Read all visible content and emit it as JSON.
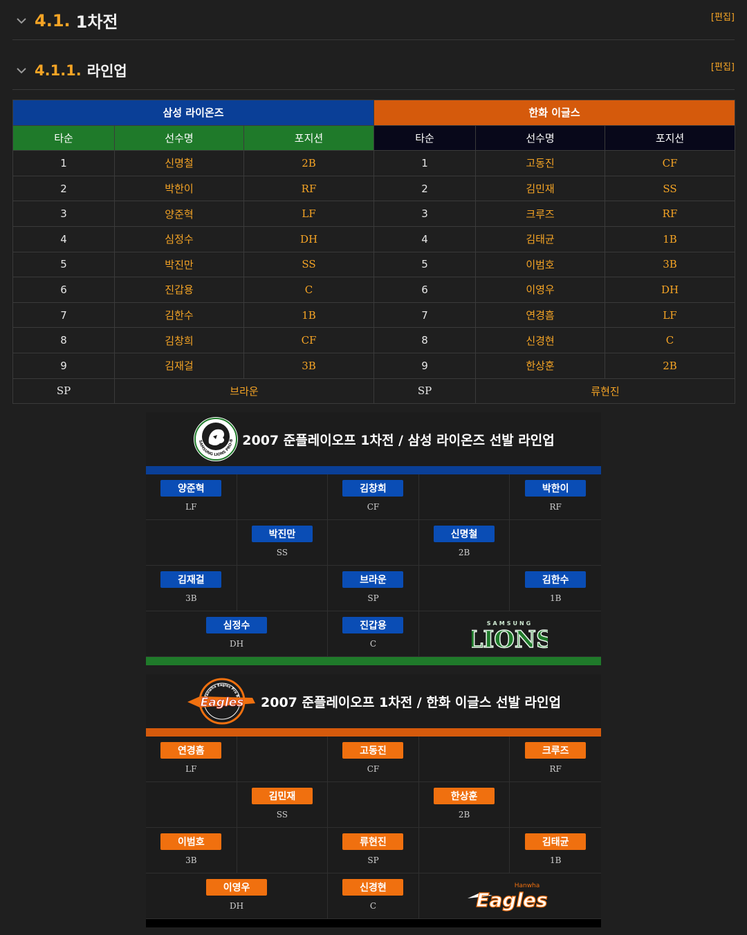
{
  "headings": [
    {
      "num": "4.1.",
      "title": "1차전",
      "edit": "[편집]"
    },
    {
      "num": "4.1.1.",
      "title": "라인업",
      "edit": "[편집]"
    }
  ],
  "table": {
    "team_left": "삼성 라이온즈",
    "team_right": "한화 이글스",
    "cols": [
      "타순",
      "선수명",
      "포지션"
    ],
    "left_rows": [
      [
        "1",
        "신명철",
        "2B"
      ],
      [
        "2",
        "박한이",
        "RF"
      ],
      [
        "3",
        "양준혁",
        "LF"
      ],
      [
        "4",
        "심정수",
        "DH"
      ],
      [
        "5",
        "박진만",
        "SS"
      ],
      [
        "6",
        "진갑용",
        "C"
      ],
      [
        "7",
        "김한수",
        "1B"
      ],
      [
        "8",
        "김창희",
        "CF"
      ],
      [
        "9",
        "김재걸",
        "3B"
      ]
    ],
    "right_rows": [
      [
        "1",
        "고동진",
        "CF"
      ],
      [
        "2",
        "김민재",
        "SS"
      ],
      [
        "3",
        "크루즈",
        "RF"
      ],
      [
        "4",
        "김태균",
        "1B"
      ],
      [
        "5",
        "이범호",
        "3B"
      ],
      [
        "6",
        "이영우",
        "DH"
      ],
      [
        "7",
        "연경흠",
        "LF"
      ],
      [
        "8",
        "신경현",
        "C"
      ],
      [
        "9",
        "한상훈",
        "2B"
      ]
    ],
    "sp_label": "SP",
    "left_sp": "브라운",
    "right_sp": "류현진"
  },
  "samsung_card": {
    "title": "2007 준플레이오프 1차전 / 삼성 라이온즈 선발 라인업",
    "logo_ring_text": "SAMSUNG LIONS PRO-BASEBALL TEAM",
    "wordmark_top": "SAMSUNG",
    "wordmark": "LIONS",
    "colors": {
      "top_bar": "#0a3f97",
      "bottom_bar": "#1f7a2a",
      "pill": "#0a4db5"
    },
    "lf": {
      "name": "양준혁",
      "pos": "LF"
    },
    "cf": {
      "name": "김창희",
      "pos": "CF"
    },
    "rf": {
      "name": "박한이",
      "pos": "RF"
    },
    "ss": {
      "name": "박진만",
      "pos": "SS"
    },
    "b2": {
      "name": "신명철",
      "pos": "2B"
    },
    "b3": {
      "name": "김재걸",
      "pos": "3B"
    },
    "sp": {
      "name": "브라운",
      "pos": "SP"
    },
    "b1": {
      "name": "김한수",
      "pos": "1B"
    },
    "dh": {
      "name": "심정수",
      "pos": "DH"
    },
    "c": {
      "name": "진갑용",
      "pos": "C"
    }
  },
  "hanwha_card": {
    "title": "2007 준플레이오프 1차전 / 한화 이글스 선발 라인업",
    "logo_text": "Eagles",
    "logo_ring_text": "Hanwha Eagles Pro Baseball Club",
    "wordmark_top": "Hanwha",
    "wordmark": "Eagles",
    "colors": {
      "top_bar": "#d55a0c",
      "bottom_bar": "#000000",
      "pill": "#f0700f"
    },
    "lf": {
      "name": "연경흠",
      "pos": "LF"
    },
    "cf": {
      "name": "고동진",
      "pos": "CF"
    },
    "rf": {
      "name": "크루즈",
      "pos": "RF"
    },
    "ss": {
      "name": "김민재",
      "pos": "SS"
    },
    "b2": {
      "name": "한상훈",
      "pos": "2B"
    },
    "b3": {
      "name": "이범호",
      "pos": "3B"
    },
    "sp": {
      "name": "류현진",
      "pos": "SP"
    },
    "b1": {
      "name": "김태균",
      "pos": "1B"
    },
    "dh": {
      "name": "이영우",
      "pos": "DH"
    },
    "c": {
      "name": "신경현",
      "pos": "C"
    }
  }
}
